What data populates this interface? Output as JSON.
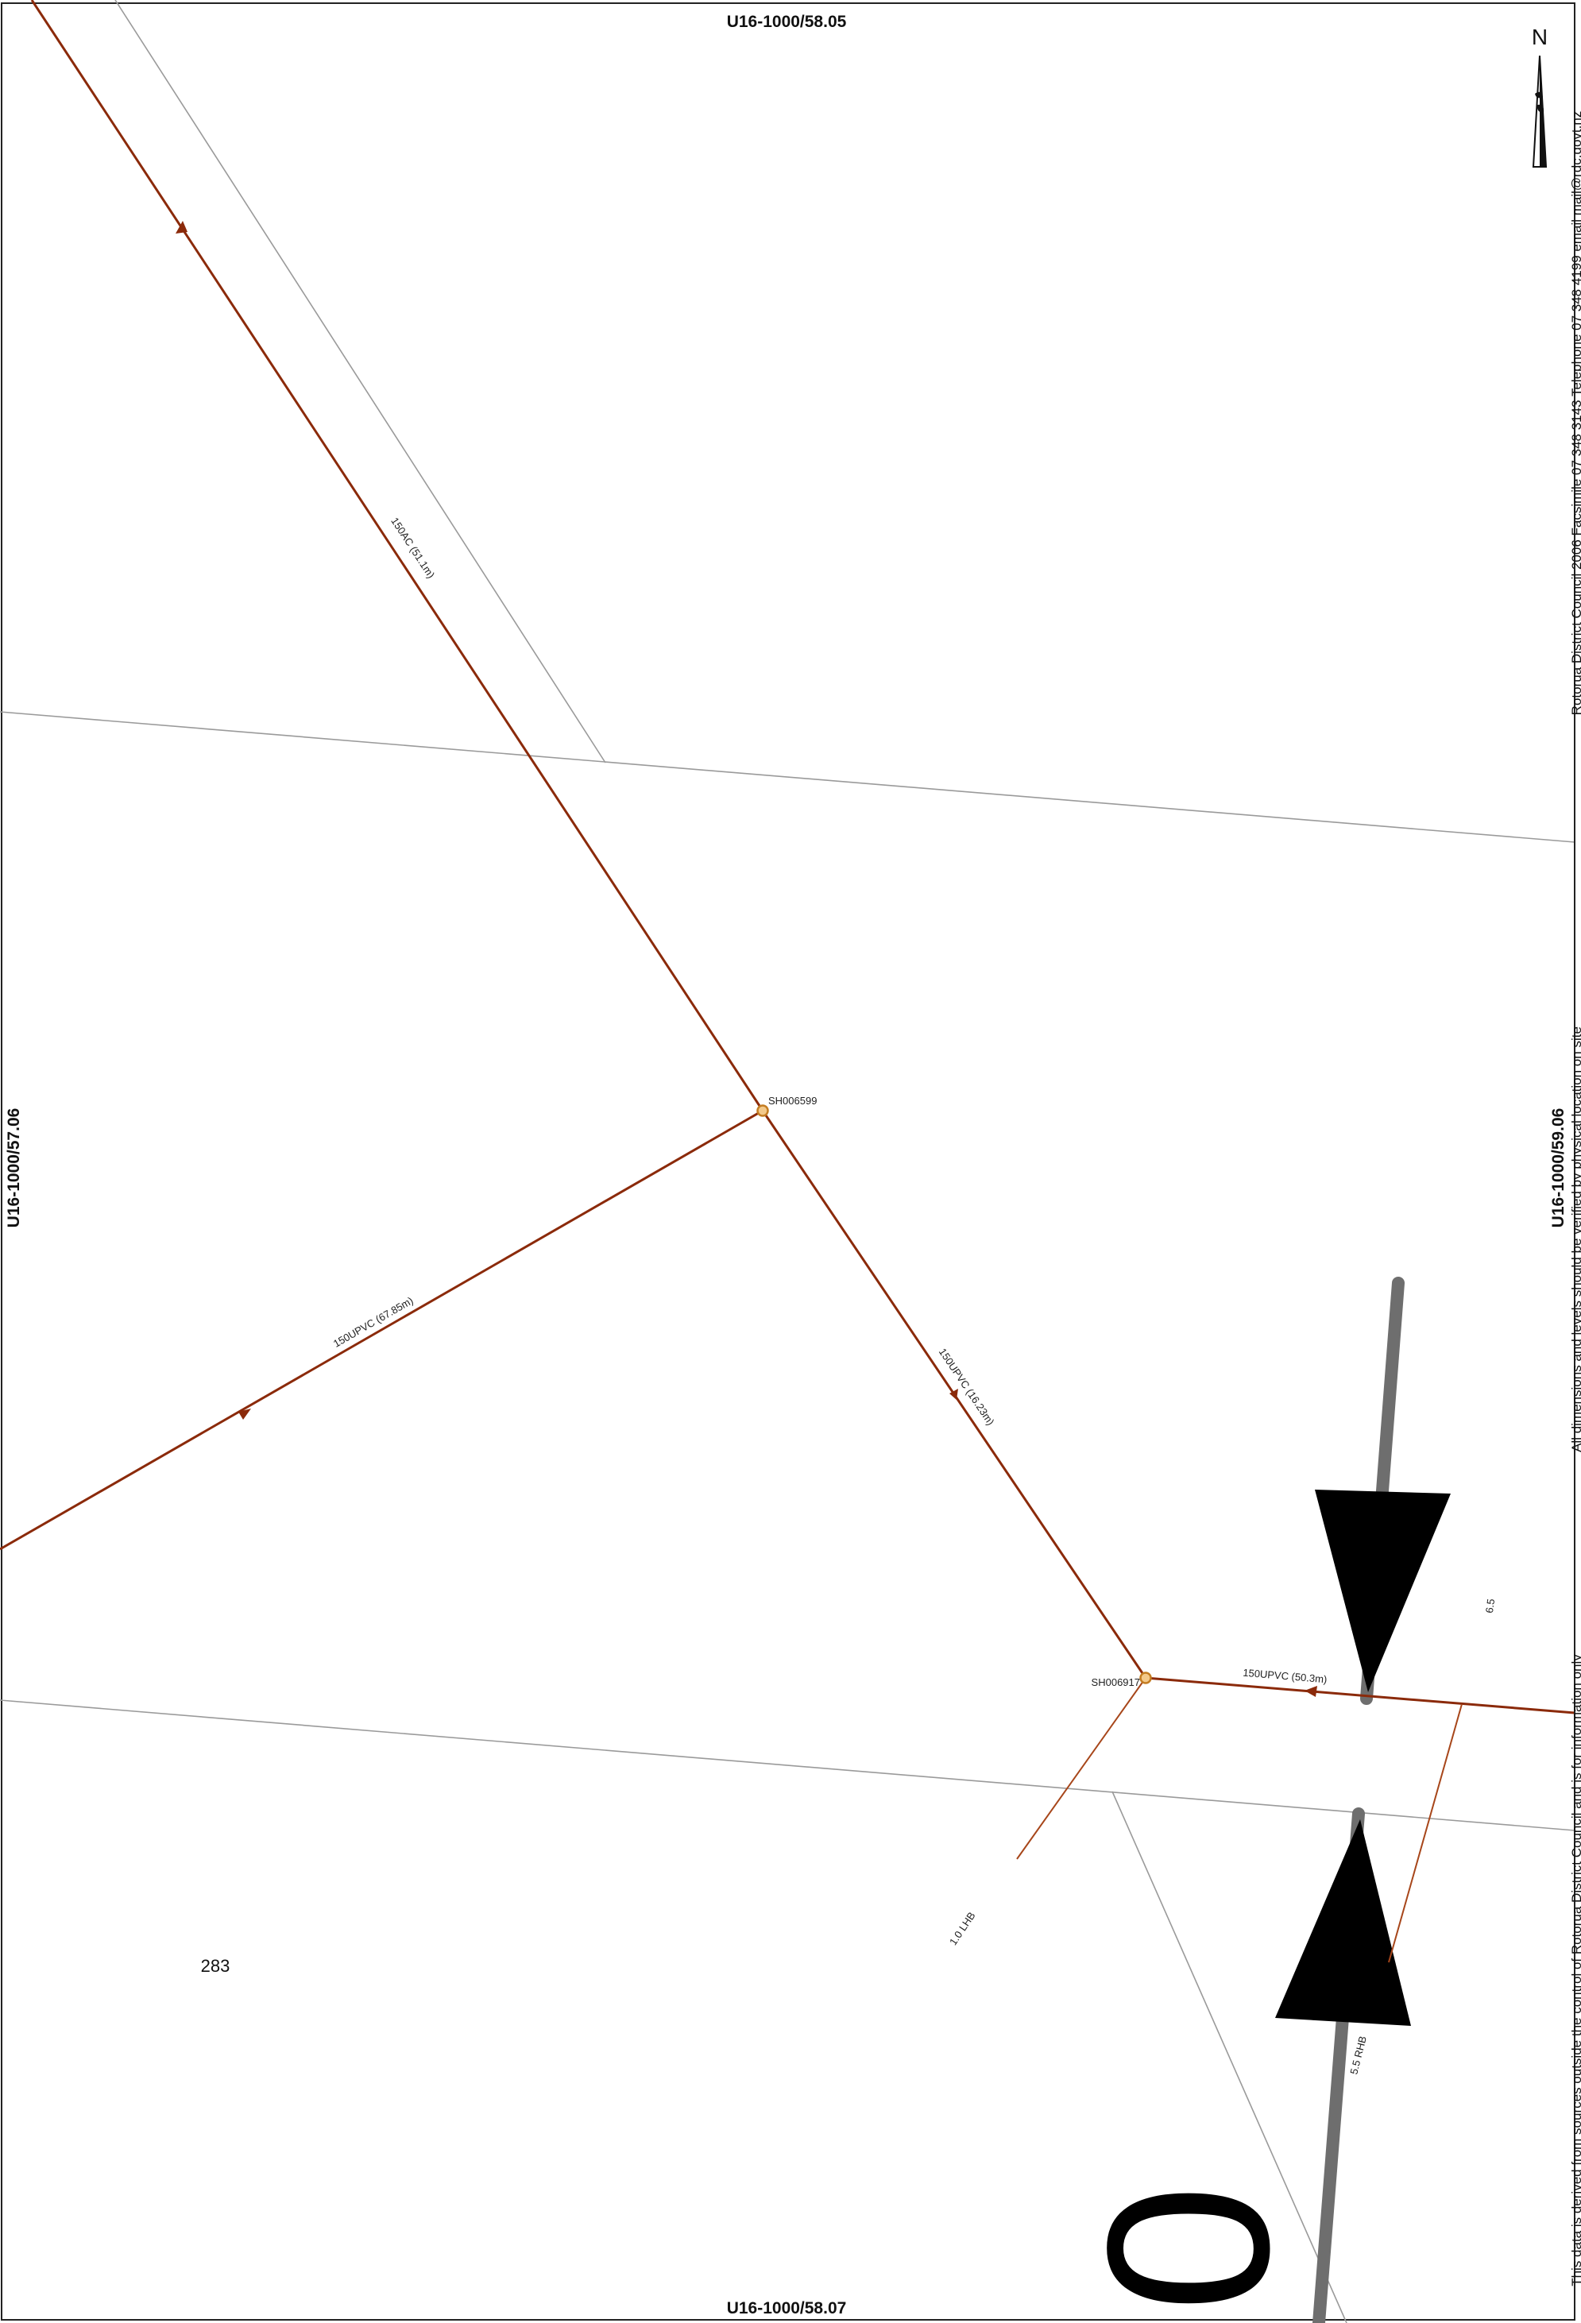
{
  "sheet_refs": {
    "top": "U16-1000/58.05",
    "bottom": "U16-1000/58.07",
    "left": "U16-1000/57.06",
    "right": "U16-1000/59.06"
  },
  "north": {
    "label": "N"
  },
  "nodes": [
    {
      "id": "SH006599"
    },
    {
      "id": "SH006917"
    }
  ],
  "pipes": [
    {
      "label": "150AC (51.1m)"
    },
    {
      "label": "150UPVC (67.85m)"
    },
    {
      "label": "150UPVC (16.23m)"
    },
    {
      "label": "150UPVC (50.3m)"
    }
  ],
  "laterals": [
    {
      "label": "1.0 LHB"
    },
    {
      "label": "5.5 RHB"
    }
  ],
  "dimension": {
    "value": "6.5"
  },
  "parcel": {
    "number": "283"
  },
  "side_text": {
    "upper": "Rotorua District Council 2006  Facsimile 07 348 3143 Telephone 07 348 4199 email mail@rdc.govt.nz",
    "middle": "All dimensions and levels should be verified by physical location on site",
    "lower": "This data is derived from sources outside the control of Rotorua District Council and is for information only"
  },
  "house_number": "0",
  "colors": {
    "pipe": "#8b2a0a",
    "boundary": "#9a9a9a",
    "road_centreline": "#6e6e6e",
    "node_fill": "#f3c98b",
    "node_stroke": "#c47d22"
  }
}
